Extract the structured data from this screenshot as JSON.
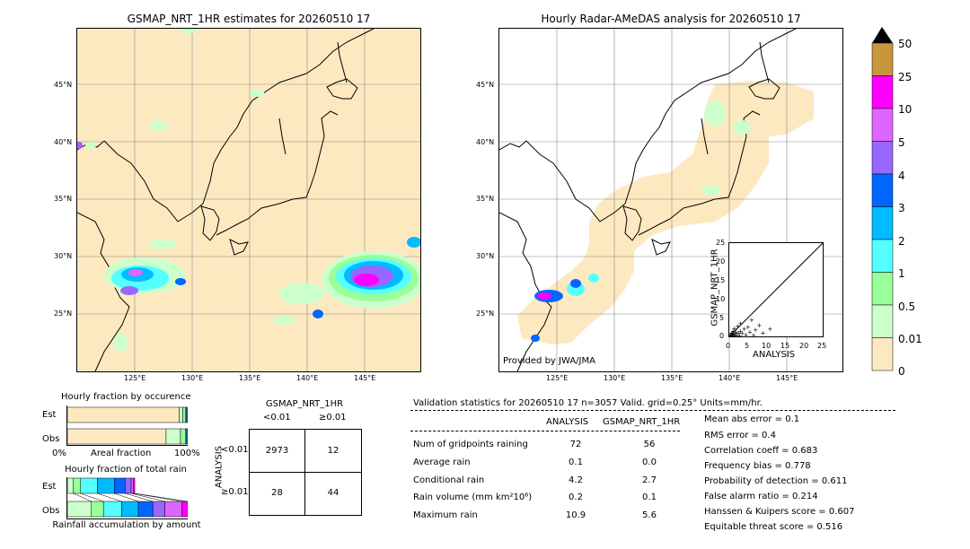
{
  "left_map": {
    "title": "GSMAP_NRT_1HR estimates for 20260510 17",
    "lat_labels": [
      "45°N",
      "40°N",
      "35°N",
      "30°N",
      "25°N"
    ],
    "lon_labels": [
      "125°E",
      "130°E",
      "135°E",
      "140°E",
      "145°E"
    ]
  },
  "right_map": {
    "title": "Hourly Radar-AMeDAS analysis for 20260510 17",
    "lat_labels": [
      "45°N",
      "40°N",
      "35°N",
      "30°N",
      "25°N"
    ],
    "lon_labels": [
      "125°E",
      "130°E",
      "135°E",
      "140°E",
      "145°E"
    ],
    "credit": "Provided by JWA/JMA"
  },
  "colorbar": {
    "labels": [
      "50",
      "25",
      "10",
      "5",
      "4",
      "3",
      "2",
      "1",
      "0.5",
      "0.01",
      "0"
    ],
    "colors": [
      "#c8963c",
      "#ff00ff",
      "#dd66ff",
      "#9966ff",
      "#0066ff",
      "#00bbff",
      "#55ffff",
      "#99ff99",
      "#ccffcc",
      "#fde9c0"
    ],
    "over_color": "#000000"
  },
  "scatter": {
    "type": "scatter",
    "xlabel": "ANALYSIS",
    "ylabel": "GSMAP_NRT_1HR",
    "xlim": [
      0,
      25
    ],
    "ylim": [
      0,
      25
    ],
    "ticks": [
      "0",
      "5",
      "10",
      "15",
      "20",
      "25"
    ],
    "points": [
      [
        0.2,
        0.1
      ],
      [
        0.5,
        0.3
      ],
      [
        0.8,
        0.2
      ],
      [
        1.0,
        0.6
      ],
      [
        1.2,
        0.4
      ],
      [
        1.5,
        0.8
      ],
      [
        1.8,
        1.2
      ],
      [
        2.0,
        0.5
      ],
      [
        2.5,
        1.0
      ],
      [
        3.0,
        1.5
      ],
      [
        3.5,
        0.8
      ],
      [
        4.0,
        2.0
      ],
      [
        5.0,
        2.5
      ],
      [
        5.5,
        1.2
      ],
      [
        7.0,
        1.8
      ],
      [
        8.0,
        3.0
      ],
      [
        6.0,
        4.5
      ],
      [
        9.0,
        1.0
      ],
      [
        10.9,
        2.0
      ],
      [
        3.0,
        3.5
      ],
      [
        2.2,
        2.8
      ],
      [
        1.0,
        1.5
      ],
      [
        0.6,
        1.0
      ],
      [
        4.5,
        0.5
      ],
      [
        1.6,
        0.2
      ],
      [
        0.3,
        0.6
      ],
      [
        2.8,
        0.3
      ],
      [
        6.5,
        0.4
      ],
      [
        1.3,
        2.2
      ],
      [
        0.9,
        0.9
      ]
    ]
  },
  "occurrence": {
    "title": "Hourly fraction by occurence",
    "rows": [
      "Est",
      "Obs"
    ],
    "xlabel": "Areal fraction",
    "x0": "0%",
    "x1": "100%",
    "est": [
      {
        "f": 0.93,
        "c": "#fde9c0"
      },
      {
        "f": 0.03,
        "c": "#ccffcc"
      },
      {
        "f": 0.02,
        "c": "#99ff99"
      },
      {
        "f": 0.01,
        "c": "#55ffff"
      },
      {
        "f": 0.01,
        "c": "#0066ff"
      }
    ],
    "obs": [
      {
        "f": 0.82,
        "c": "#fde9c0"
      },
      {
        "f": 0.12,
        "c": "#ccffcc"
      },
      {
        "f": 0.04,
        "c": "#99ff99"
      },
      {
        "f": 0.01,
        "c": "#55ffff"
      },
      {
        "f": 0.01,
        "c": "#0066ff"
      }
    ]
  },
  "amount": {
    "title": "Hourly fraction of total rain",
    "rows": [
      "Est",
      "Obs"
    ],
    "xlabel": "Rainfall accumulation by amount",
    "est": [
      {
        "f": 0.05,
        "c": "#ccffcc"
      },
      {
        "f": 0.06,
        "c": "#99ff99"
      },
      {
        "f": 0.14,
        "c": "#55ffff"
      },
      {
        "f": 0.14,
        "c": "#00bbff"
      },
      {
        "f": 0.09,
        "c": "#0066ff"
      },
      {
        "f": 0.05,
        "c": "#9966ff"
      },
      {
        "f": 0.02,
        "c": "#dd66ff"
      },
      {
        "f": 0.01,
        "c": "#ff00ff"
      }
    ],
    "obs": [
      {
        "f": 0.2,
        "c": "#ccffcc"
      },
      {
        "f": 0.1,
        "c": "#99ff99"
      },
      {
        "f": 0.15,
        "c": "#55ffff"
      },
      {
        "f": 0.14,
        "c": "#00bbff"
      },
      {
        "f": 0.12,
        "c": "#0066ff"
      },
      {
        "f": 0.1,
        "c": "#9966ff"
      },
      {
        "f": 0.14,
        "c": "#dd66ff"
      },
      {
        "f": 0.05,
        "c": "#ff00ff"
      }
    ]
  },
  "contingency": {
    "title": "GSMAP_NRT_1HR",
    "col_lt": "<0.01",
    "col_ge": "≥0.01",
    "side_label": "ANALYSIS",
    "row_lt": "<0.01",
    "row_ge": "≥0.01",
    "a": "2973",
    "b": "12",
    "c": "28",
    "d": "44"
  },
  "validation": {
    "header": "Validation statistics for 20260510 17  n=3057 Valid. grid=0.25° Units=mm/hr.",
    "col1": "ANALYSIS",
    "col2": "GSMAP_NRT_1HR",
    "rows": [
      {
        "label": "Num of gridpoints raining",
        "a": "72",
        "g": "56"
      },
      {
        "label": "Average rain",
        "a": "0.1",
        "g": "0.0"
      },
      {
        "label": "Conditional rain",
        "a": "4.2",
        "g": "2.7"
      },
      {
        "label": "Rain volume (mm km²10⁶)",
        "a": "0.2",
        "g": "0.1"
      },
      {
        "label": "Maximum rain",
        "a": "10.9",
        "g": "5.6"
      }
    ],
    "scores": [
      "Mean abs error =    0.1",
      "RMS error =    0.4",
      "Correlation coeff =  0.683",
      "Frequency bias =  0.778",
      "Probability of detection =  0.611",
      "False alarm ratio =  0.214",
      "Hanssen & Kuipers score =  0.607",
      "Equitable threat score =  0.516"
    ]
  }
}
